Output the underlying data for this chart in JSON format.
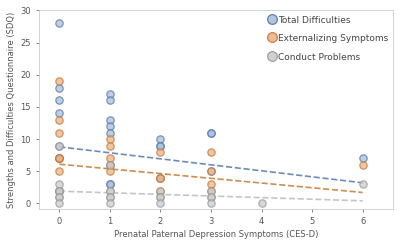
{
  "title": "",
  "xlabel": "Prenatal Paternal Depression Symptoms (CES-D)",
  "ylabel": "Strengths and Difficulties Questionnaire (SDQ)",
  "xlim": [
    -0.4,
    6.6
  ],
  "ylim": [
    -0.8,
    30
  ],
  "xticks": [
    0,
    1,
    2,
    3,
    4,
    5,
    6
  ],
  "yticks": [
    0,
    5,
    10,
    15,
    20,
    25,
    30
  ],
  "blue_x": [
    0,
    0,
    0,
    0,
    0,
    0,
    0,
    0,
    1,
    1,
    1,
    1,
    1,
    1,
    1,
    1,
    2,
    2,
    2,
    2,
    3,
    3,
    3,
    6
  ],
  "blue_y": [
    28,
    18,
    16,
    14,
    9,
    7,
    7,
    2,
    17,
    16,
    13,
    12,
    11,
    6,
    3,
    3,
    10,
    9,
    9,
    4,
    11,
    11,
    5,
    7
  ],
  "orange_x": [
    0,
    0,
    0,
    0,
    0,
    0,
    0,
    1,
    1,
    1,
    1,
    1,
    2,
    2,
    2,
    2,
    3,
    3,
    3,
    3,
    6
  ],
  "orange_y": [
    19,
    13,
    11,
    7,
    7,
    5,
    2,
    10,
    9,
    7,
    6,
    5,
    8,
    4,
    4,
    2,
    8,
    5,
    3,
    2,
    6
  ],
  "gray_x": [
    0,
    0,
    0,
    0,
    0,
    0,
    0,
    0,
    1,
    1,
    1,
    1,
    1,
    1,
    2,
    2,
    2,
    2,
    3,
    3,
    3,
    3,
    4,
    6
  ],
  "gray_y": [
    9,
    3,
    2,
    2,
    2,
    1,
    1,
    0,
    6,
    2,
    2,
    1,
    1,
    0,
    2,
    1,
    1,
    0,
    2,
    1,
    1,
    0,
    0,
    3
  ],
  "blue_trend_x": [
    0,
    6
  ],
  "blue_trend_y": [
    8.8,
    3.2
  ],
  "orange_trend_x": [
    0,
    6
  ],
  "orange_trend_y": [
    6.1,
    1.7
  ],
  "gray_trend_x": [
    0,
    6
  ],
  "gray_trend_y": [
    1.9,
    0.4
  ],
  "blue_face": "#a8bfdc",
  "blue_edge": "#5577aa",
  "orange_face": "#e8b48a",
  "orange_edge": "#c87830",
  "gray_face": "#cccccc",
  "gray_edge": "#999999",
  "blue_line_color": "#5577aa",
  "orange_line_color": "#c87830",
  "gray_line_color": "#bbbbbb",
  "legend_labels": [
    "Total Difficulties",
    "Externalizing Symptoms",
    "Conduct Problems"
  ],
  "background_color": "#ffffff",
  "marker_size": 28,
  "marker_alpha": 0.75,
  "marker_linewidth": 0.9
}
